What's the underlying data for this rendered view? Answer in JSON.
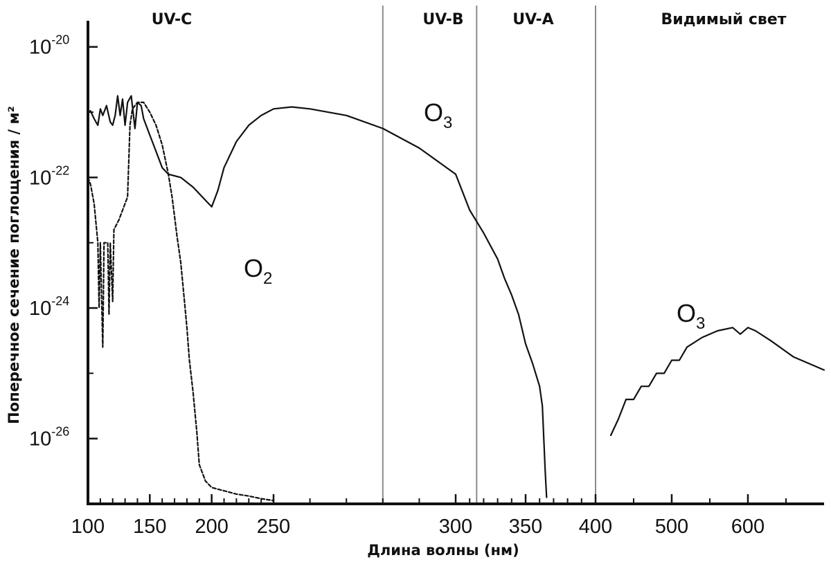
{
  "chart_data": {
    "type": "line",
    "title": "",
    "xlabel": "Длина волны (нм)",
    "ylabel": "Поперечное сечение поглощения / м²",
    "y_scale": "log10",
    "ylim_exponent": [
      -27.0,
      -19.6
    ],
    "x_scale": "piecewise",
    "x_segments": [
      {
        "from": 100,
        "to": 250
      },
      {
        "from": 250,
        "to": 300
      },
      {
        "from": 300,
        "to": 400
      },
      {
        "from": 400,
        "to": 700
      }
    ],
    "x_ticks": [
      {
        "value": 100,
        "label": "100"
      },
      {
        "value": 150,
        "label": "150"
      },
      {
        "value": 200,
        "label": "200"
      },
      {
        "value": 250,
        "label": "250"
      },
      {
        "value": 300,
        "label": "300"
      },
      {
        "value": 350,
        "label": "350"
      },
      {
        "value": 400,
        "label": "400"
      },
      {
        "value": 500,
        "label": "500"
      },
      {
        "value": 600,
        "label": "600"
      }
    ],
    "y_ticks": [
      {
        "exp": -20,
        "base": "10",
        "power": "-20"
      },
      {
        "exp": -22,
        "base": "10",
        "power": "-22"
      },
      {
        "exp": -24,
        "base": "10",
        "power": "-24"
      },
      {
        "exp": -26,
        "base": "10",
        "power": "-26"
      }
    ],
    "bands": [
      {
        "label": "UV-C",
        "from": 100,
        "to": 280
      },
      {
        "label": "UV-B",
        "from": 280,
        "to": 315
      },
      {
        "label": "UV-A",
        "from": 315,
        "to": 400
      },
      {
        "label": "Видимый свет",
        "from": 400,
        "to": 700
      }
    ],
    "band_boundaries": [
      280,
      315,
      400
    ],
    "annotations": [
      {
        "text": "O",
        "sub": "3",
        "series": "O3 (UV)"
      },
      {
        "text": "O",
        "sub": "2",
        "series": "O2"
      },
      {
        "text": "O",
        "sub": "3",
        "series": "O3 (visible)"
      }
    ],
    "series": [
      {
        "name": "O3 (UV)",
        "style": "solid",
        "note": "y values are log10 of cross-section in m²",
        "points": [
          [
            100,
            -21.0
          ],
          [
            102,
            -20.98
          ],
          [
            105,
            -21.1
          ],
          [
            108,
            -21.2
          ],
          [
            110,
            -20.95
          ],
          [
            112,
            -21.05
          ],
          [
            115,
            -20.9
          ],
          [
            118,
            -21.15
          ],
          [
            120,
            -21.2
          ],
          [
            122,
            -21.05
          ],
          [
            124,
            -20.75
          ],
          [
            126,
            -21.05
          ],
          [
            128,
            -20.8
          ],
          [
            130,
            -21.2
          ],
          [
            132,
            -20.85
          ],
          [
            135,
            -20.75
          ],
          [
            138,
            -21.25
          ],
          [
            140,
            -20.85
          ],
          [
            143,
            -20.9
          ],
          [
            145,
            -21.1
          ],
          [
            150,
            -21.35
          ],
          [
            155,
            -21.6
          ],
          [
            160,
            -21.85
          ],
          [
            165,
            -21.95
          ],
          [
            175,
            -22.0
          ],
          [
            185,
            -22.15
          ],
          [
            195,
            -22.35
          ],
          [
            200,
            -22.45
          ],
          [
            205,
            -22.2
          ],
          [
            210,
            -21.85
          ],
          [
            220,
            -21.45
          ],
          [
            230,
            -21.2
          ],
          [
            240,
            -21.05
          ],
          [
            250,
            -20.95
          ],
          [
            255,
            -20.92
          ],
          [
            260,
            -20.95
          ],
          [
            270,
            -21.05
          ],
          [
            280,
            -21.25
          ],
          [
            290,
            -21.55
          ],
          [
            300,
            -21.95
          ],
          [
            310,
            -22.5
          ],
          [
            320,
            -22.85
          ],
          [
            330,
            -23.25
          ],
          [
            335,
            -23.55
          ],
          [
            340,
            -23.8
          ],
          [
            345,
            -24.1
          ],
          [
            350,
            -24.55
          ],
          [
            355,
            -24.85
          ],
          [
            360,
            -25.2
          ],
          [
            362,
            -25.5
          ],
          [
            364,
            -26.5
          ],
          [
            365,
            -26.9
          ]
        ]
      },
      {
        "name": "O2",
        "style": "dashed",
        "note": "y values are log10 of cross-section in m²",
        "points": [
          [
            100,
            -22.0
          ],
          [
            102,
            -22.1
          ],
          [
            105,
            -22.4
          ],
          [
            107,
            -22.8
          ],
          [
            108,
            -23.0
          ],
          [
            109,
            -24.0
          ],
          [
            110,
            -23.0
          ],
          [
            112,
            -24.6
          ],
          [
            113,
            -23.0
          ],
          [
            114,
            -23.0
          ],
          [
            116,
            -23.0
          ],
          [
            117,
            -24.1
          ],
          [
            118,
            -23.0
          ],
          [
            120,
            -23.9
          ],
          [
            121,
            -22.8
          ],
          [
            125,
            -22.65
          ],
          [
            130,
            -22.4
          ],
          [
            132,
            -22.3
          ],
          [
            134,
            -21.2
          ],
          [
            136,
            -20.95
          ],
          [
            140,
            -20.85
          ],
          [
            145,
            -20.85
          ],
          [
            150,
            -21.0
          ],
          [
            155,
            -21.2
          ],
          [
            160,
            -21.5
          ],
          [
            165,
            -21.95
          ],
          [
            168,
            -22.3
          ],
          [
            170,
            -22.6
          ],
          [
            172,
            -22.9
          ],
          [
            175,
            -23.3
          ],
          [
            178,
            -23.9
          ],
          [
            180,
            -24.3
          ],
          [
            182,
            -24.8
          ],
          [
            185,
            -25.3
          ],
          [
            188,
            -25.9
          ],
          [
            190,
            -26.4
          ],
          [
            195,
            -26.65
          ],
          [
            200,
            -26.75
          ],
          [
            210,
            -26.8
          ],
          [
            220,
            -26.85
          ],
          [
            230,
            -26.88
          ],
          [
            240,
            -26.92
          ],
          [
            250,
            -26.95
          ]
        ]
      },
      {
        "name": "O3 (visible)",
        "style": "solid",
        "note": "y values are log10 of cross-section in m²",
        "points": [
          [
            420,
            -25.95
          ],
          [
            430,
            -25.7
          ],
          [
            440,
            -25.4
          ],
          [
            450,
            -25.4
          ],
          [
            460,
            -25.2
          ],
          [
            470,
            -25.2
          ],
          [
            480,
            -25.0
          ],
          [
            490,
            -25.0
          ],
          [
            500,
            -24.8
          ],
          [
            510,
            -24.8
          ],
          [
            520,
            -24.6
          ],
          [
            540,
            -24.45
          ],
          [
            560,
            -24.35
          ],
          [
            580,
            -24.3
          ],
          [
            590,
            -24.4
          ],
          [
            600,
            -24.3
          ],
          [
            610,
            -24.35
          ],
          [
            630,
            -24.5
          ],
          [
            660,
            -24.75
          ],
          [
            690,
            -24.9
          ],
          [
            700,
            -24.95
          ]
        ]
      }
    ]
  }
}
